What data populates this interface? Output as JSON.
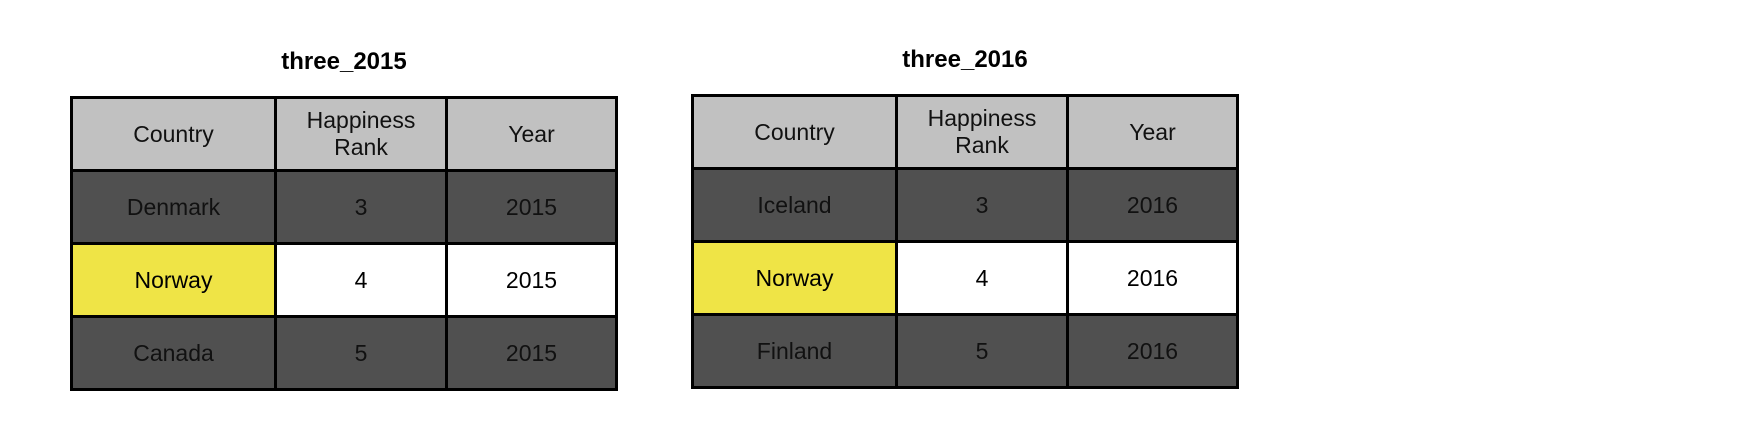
{
  "colors": {
    "header": "#c1c1c1",
    "dark_row": "#505050",
    "highlight": "#efe446",
    "white": "#ffffff"
  },
  "tables": [
    {
      "title": "three_2015",
      "headers": [
        "Country",
        "Happiness Rank",
        "Year"
      ],
      "rows": [
        {
          "cells": [
            "Denmark",
            "3",
            "2015"
          ],
          "style": [
            "dark",
            "dark",
            "dark"
          ]
        },
        {
          "cells": [
            "Norway",
            "4",
            "2015"
          ],
          "style": [
            "yellow",
            "white",
            "white"
          ]
        },
        {
          "cells": [
            "Canada",
            "5",
            "2015"
          ],
          "style": [
            "dark",
            "dark",
            "dark"
          ]
        }
      ]
    },
    {
      "title": "three_2016",
      "headers": [
        "Country",
        "Happiness Rank",
        "Year"
      ],
      "rows": [
        {
          "cells": [
            "Iceland",
            "3",
            "2016"
          ],
          "style": [
            "dark",
            "dark",
            "dark"
          ]
        },
        {
          "cells": [
            "Norway",
            "4",
            "2016"
          ],
          "style": [
            "yellow",
            "white",
            "white"
          ]
        },
        {
          "cells": [
            "Finland",
            "5",
            "2016"
          ],
          "style": [
            "dark",
            "dark",
            "dark"
          ]
        }
      ]
    }
  ]
}
